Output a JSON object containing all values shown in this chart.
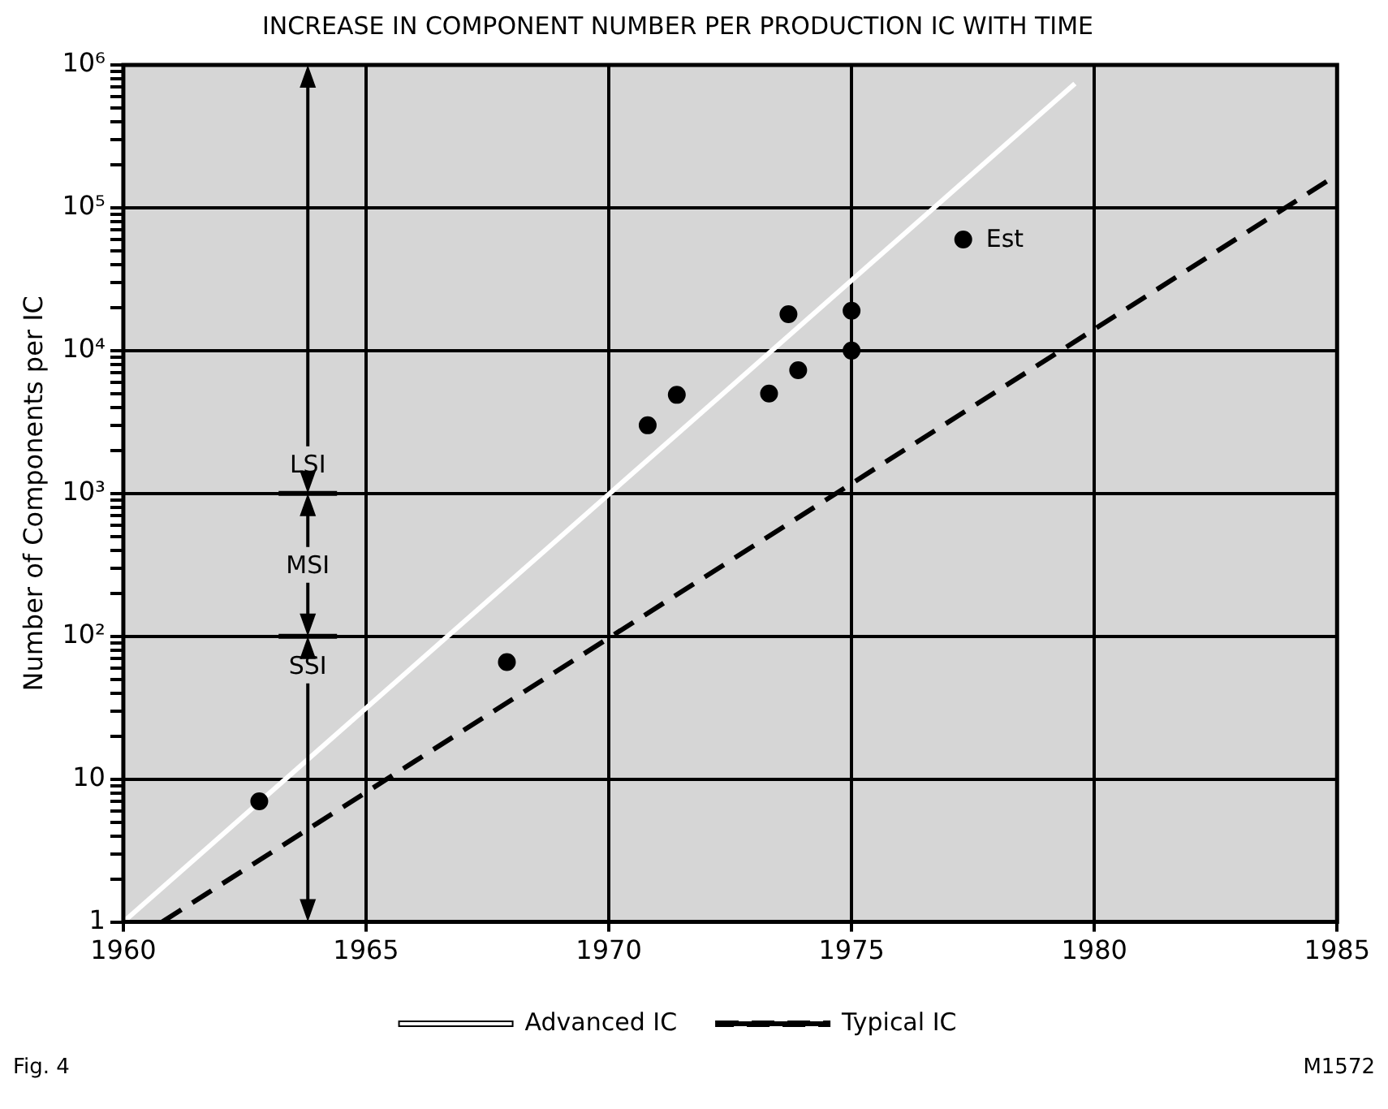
{
  "chart_data": {
    "type": "scatter",
    "title": "INCREASE IN COMPONENT NUMBER PER PRODUCTION IC WITH TIME",
    "ylabel": "Number of Components per IC",
    "xlim": [
      1960,
      1985
    ],
    "xticks": [
      1960,
      1965,
      1970,
      1975,
      1980,
      1985
    ],
    "ylim": [
      1,
      1000000
    ],
    "log": "y",
    "yticks": [
      1,
      {
        "value": 2,
        "label": null
      },
      {
        "value": 3,
        "label": null
      },
      {
        "value": 4,
        "label": null
      },
      {
        "value": 5,
        "label": null
      },
      {
        "value": 6,
        "label": null
      },
      {
        "value": 7,
        "label": null
      },
      {
        "value": 8,
        "label": null
      },
      {
        "value": 9,
        "label": null
      },
      10,
      {
        "value": 20,
        "label": null
      },
      {
        "value": 30,
        "label": null
      },
      {
        "value": 40,
        "label": null
      },
      {
        "value": 50,
        "label": null
      },
      {
        "value": 60,
        "label": null
      },
      {
        "value": 70,
        "label": null
      },
      {
        "value": 80,
        "label": null
      },
      {
        "value": 90,
        "label": null
      },
      {
        "value": 100,
        "label": "10²"
      },
      {
        "value": 200,
        "label": null
      },
      {
        "value": 300,
        "label": null
      },
      {
        "value": 400,
        "label": null
      },
      {
        "value": 500,
        "label": null
      },
      {
        "value": 600,
        "label": null
      },
      {
        "value": 700,
        "label": null
      },
      {
        "value": 800,
        "label": null
      },
      {
        "value": 900,
        "label": null
      },
      {
        "value": 1000,
        "label": "10³"
      },
      {
        "value": 2000,
        "label": null
      },
      {
        "value": 3000,
        "label": null
      },
      {
        "value": 4000,
        "label": null
      },
      {
        "value": 5000,
        "label": null
      },
      {
        "value": 6000,
        "label": null
      },
      {
        "value": 7000,
        "label": null
      },
      {
        "value": 8000,
        "label": null
      },
      {
        "value": 9000,
        "label": null
      },
      {
        "value": 10000,
        "label": "10⁴"
      },
      {
        "value": 20000,
        "label": null
      },
      {
        "value": 30000,
        "label": null
      },
      {
        "value": 40000,
        "label": null
      },
      {
        "value": 50000,
        "label": null
      },
      {
        "value": 60000,
        "label": null
      },
      {
        "value": 70000,
        "label": null
      },
      {
        "value": 80000,
        "label": null
      },
      {
        "value": 90000,
        "label": null
      },
      {
        "value": 100000,
        "label": "10⁵"
      },
      {
        "value": 200000,
        "label": null
      },
      {
        "value": 300000,
        "label": null
      },
      {
        "value": 400000,
        "label": null
      },
      {
        "value": 500000,
        "label": null
      },
      {
        "value": 600000,
        "label": null
      },
      {
        "value": 700000,
        "label": null
      },
      {
        "value": 800000,
        "label": null
      },
      {
        "value": 900000,
        "label": null
      },
      {
        "value": 1000000,
        "label": "10⁶"
      }
    ],
    "grid": true,
    "legend": "bottom",
    "series": [
      {
        "type": "scatter",
        "marker": "circle",
        "color": "#000000",
        "x": [
          1962.8,
          1967.9,
          1970.8,
          1971.4,
          1973.3,
          1973.9,
          1973.7,
          1975,
          1975,
          1977.3
        ],
        "values": [
          7,
          66,
          3000,
          4900,
          5000,
          7300,
          18000,
          19000,
          10000,
          60000
        ]
      },
      {
        "type": "line",
        "name": "Advanced IC",
        "color": "#ffffff",
        "line_style": "solid",
        "x": [
          1960,
          1979.6
        ],
        "values": [
          1,
          740000
        ]
      },
      {
        "type": "line",
        "name": "Typical IC",
        "color": "#000000",
        "line_style": "dashed",
        "x": [
          1960.8,
          1985
        ],
        "values": [
          1,
          170000
        ]
      }
    ],
    "annotations": [
      {
        "text": "Est",
        "x": 1977.3,
        "y": 60000
      },
      "LSI",
      "MSI",
      "SSI",
      "Fig. 4",
      "M1572"
    ]
  }
}
